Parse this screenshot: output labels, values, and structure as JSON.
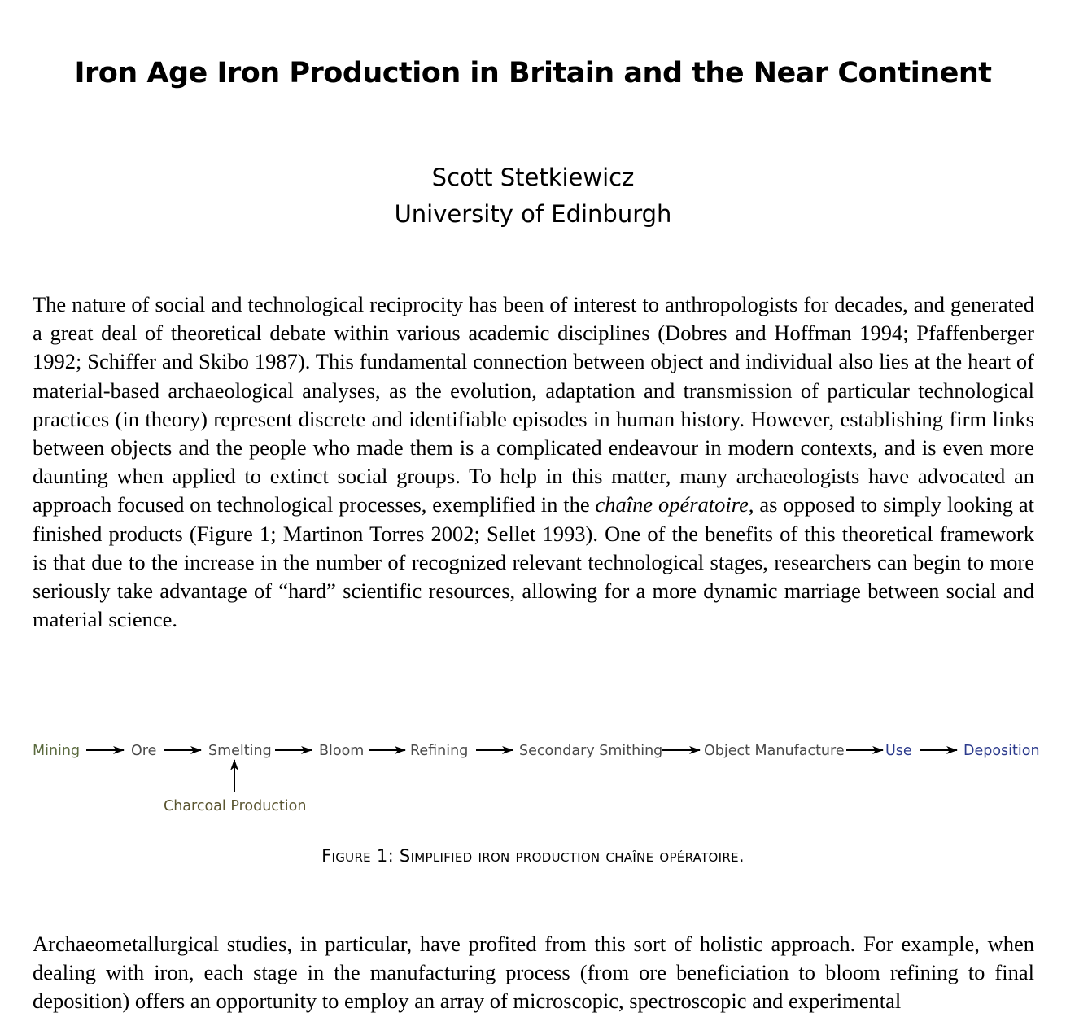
{
  "title": "Iron Age Iron Production in Britain and the Near Continent",
  "author": "Scott Stetkiewicz",
  "affiliation": "University of Edinburgh",
  "paragraph1": {
    "before_italic": "The nature of social and technological reciprocity has been of interest to anthropologists for decades, and generated a great deal of theoretical debate within various academic disciplines (Dobres and Hoffman 1994; Pfaffenberger 1992; Schiffer and Skibo 1987).  This fundamental connection between object and individual also lies at the heart of material-based archaeological analyses, as the evolution, adaptation and transmission of particular technological practices (in theory) represent discrete and identifiable episodes in human history.  However, establishing firm links between objects and the people who made them is a complicated endeavour in modern contexts, and is even more daunting when applied to extinct social groups.  To help in this matter, many archaeologists have advocated an approach focused on technological processes, exemplified in the ",
    "italic": "chaîne opératoire",
    "after_italic": ", as opposed to simply looking at finished products (Figure 1; Martinon Torres 2002; Sellet 1993).  One of the benefits of this theoretical framework is that due to the increase in the number of recognized relevant technological stages, researchers can begin to more seriously take advantage of “hard” scientific resources, allowing for a more dynamic marriage between social and material science."
  },
  "figure": {
    "stages": [
      "Mining",
      "Ore",
      "Smelting",
      "Bloom",
      "Refining",
      "Secondary Smithing",
      "Object Manufacture",
      "Use",
      "Deposition"
    ],
    "input": "Charcoal Production",
    "colors": {
      "stage_default": "#4a4a4a",
      "stage_mining": "#5a6a3e",
      "stage_late": "#2b3a8c",
      "input": "#5a5530",
      "arrow": "#000000"
    },
    "caption": "Figure 1: Simplified iron production chaîne opératoire."
  },
  "paragraph2": "Archaeometallurgical studies, in particular, have profited from this sort of holistic approach.  For example, when dealing with iron, each stage in the manufacturing process (from ore beneficiation to bloom refining to final deposition) offers an opportunity to employ an array of microscopic, spectroscopic and experimental"
}
